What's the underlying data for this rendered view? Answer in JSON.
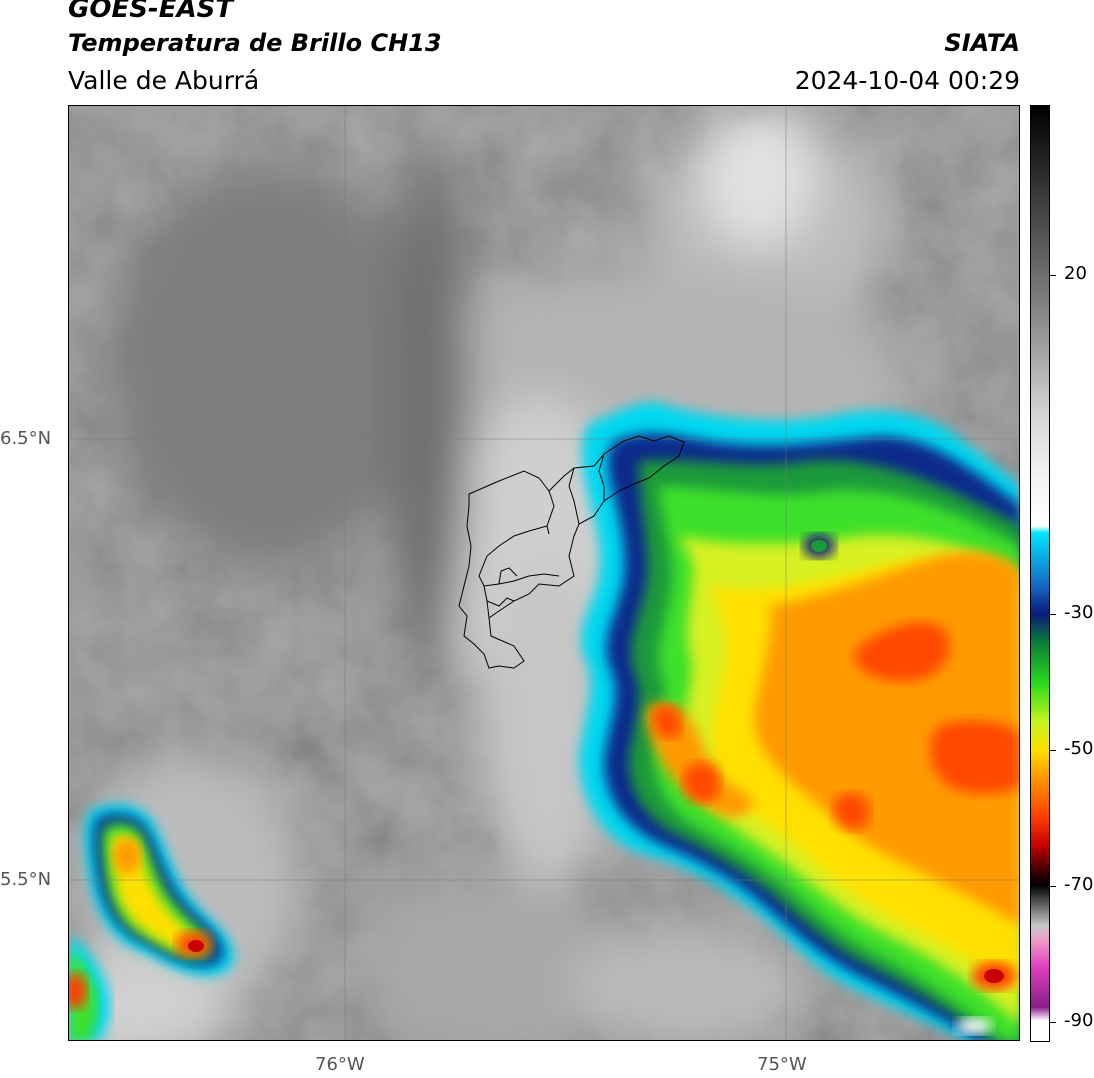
{
  "header": {
    "satellite": "GOES-EAST",
    "product": "Temperatura de Brillo CH13",
    "region": "Valle de Aburrá",
    "organization": "SIATA",
    "datetime": "2024-10-04 00:29"
  },
  "map": {
    "lat_ticks": [
      "6.5°N",
      "5.5°N"
    ],
    "lon_ticks": [
      "76°W",
      "75°W"
    ],
    "lat_values": [
      6.5,
      5.5
    ],
    "lon_values": [
      -76,
      -75
    ]
  },
  "colorbar": {
    "ticks": [
      "20",
      "-30",
      "-50",
      "-70",
      "-90"
    ],
    "tick_values": [
      20,
      -30,
      -50,
      -70,
      -90
    ],
    "range": [
      -93,
      45
    ],
    "stops": [
      {
        "v": 45,
        "c": "#000000"
      },
      {
        "v": 20,
        "c": "#6e6e6e"
      },
      {
        "v": 10,
        "c": "#9c9c9c"
      },
      {
        "v": 0,
        "c": "#d2d2d2"
      },
      {
        "v": -10,
        "c": "#f4f4f4"
      },
      {
        "v": -17,
        "c": "#ffffff"
      },
      {
        "v": -18,
        "c": "#00e5ff"
      },
      {
        "v": -26,
        "c": "#1565c0"
      },
      {
        "v": -30,
        "c": "#0a1a7a"
      },
      {
        "v": -34,
        "c": "#0a7a3a"
      },
      {
        "v": -40,
        "c": "#27d81e"
      },
      {
        "v": -46,
        "c": "#c8f51e"
      },
      {
        "v": -50,
        "c": "#ffe000"
      },
      {
        "v": -54,
        "c": "#ff9a00"
      },
      {
        "v": -60,
        "c": "#ff3c00"
      },
      {
        "v": -64,
        "c": "#c80000"
      },
      {
        "v": -68,
        "c": "#3a0000"
      },
      {
        "v": -70,
        "c": "#000000"
      },
      {
        "v": -76,
        "c": "#c8c8c8"
      },
      {
        "v": -78,
        "c": "#f0a0c8"
      },
      {
        "v": -82,
        "c": "#e040c0"
      },
      {
        "v": -88,
        "c": "#8a1e8a"
      },
      {
        "v": -90,
        "c": "#ffffff"
      },
      {
        "v": -93,
        "c": "#ffffff"
      }
    ]
  }
}
